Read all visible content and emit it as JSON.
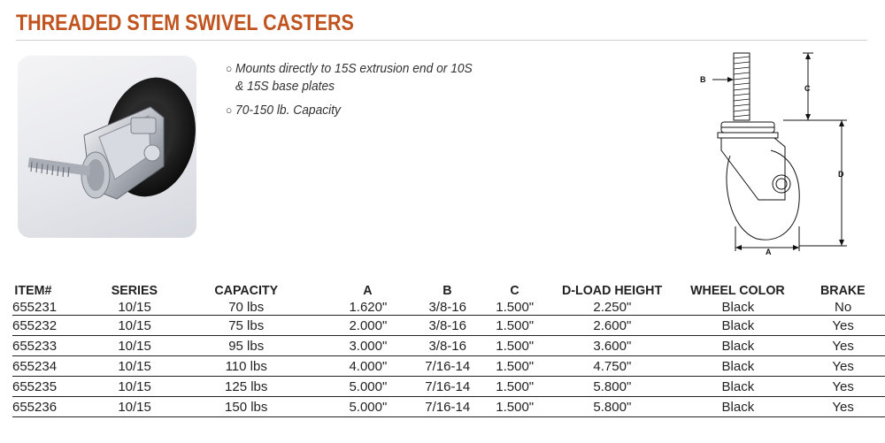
{
  "header": {
    "title": "THREADED STEM SWIVEL CASTERS"
  },
  "features": [
    {
      "lines": [
        "Mounts directly to 15S extrusion end or 10S",
        "& 15S base plates"
      ]
    },
    {
      "lines": [
        "70-150 lb. Capacity"
      ]
    }
  ],
  "diagram": {
    "labels": {
      "a": "A",
      "b": "B",
      "c": "C",
      "d": "D"
    }
  },
  "table": {
    "columns": [
      "ITEM#",
      "SERIES",
      "CAPACITY",
      "A",
      "B",
      "C",
      "D-LOAD HEIGHT",
      "WHEEL COLOR",
      "BRAKE"
    ],
    "rows": [
      [
        "655231",
        "10/15",
        "70 lbs",
        "1.620\"",
        "3/8-16",
        "1.500\"",
        "2.250\"",
        "Black",
        "No"
      ],
      [
        "655232",
        "10/15",
        "75 lbs",
        "2.000\"",
        "3/8-16",
        "1.500\"",
        "2.600\"",
        "Black",
        "Yes"
      ],
      [
        "655233",
        "10/15",
        "95 lbs",
        "3.000\"",
        "3/8-16",
        "1.500\"",
        "3.600\"",
        "Black",
        "Yes"
      ],
      [
        "655234",
        "10/15",
        "110 lbs",
        "4.000\"",
        "7/16-14",
        "1.500\"",
        "4.750\"",
        "Black",
        "Yes"
      ],
      [
        "655235",
        "10/15",
        "125 lbs",
        "5.000\"",
        "7/16-14",
        "1.500\"",
        "5.800\"",
        "Black",
        "Yes"
      ],
      [
        "655236",
        "10/15",
        "150 lbs",
        "5.000\"",
        "7/16-14",
        "1.500\"",
        "5.800\"",
        "Black",
        "Yes"
      ]
    ]
  },
  "colors": {
    "title": "#c0531e",
    "rule": "#222222"
  },
  "icons": {
    "bullet": "circle-bullet-icon"
  }
}
